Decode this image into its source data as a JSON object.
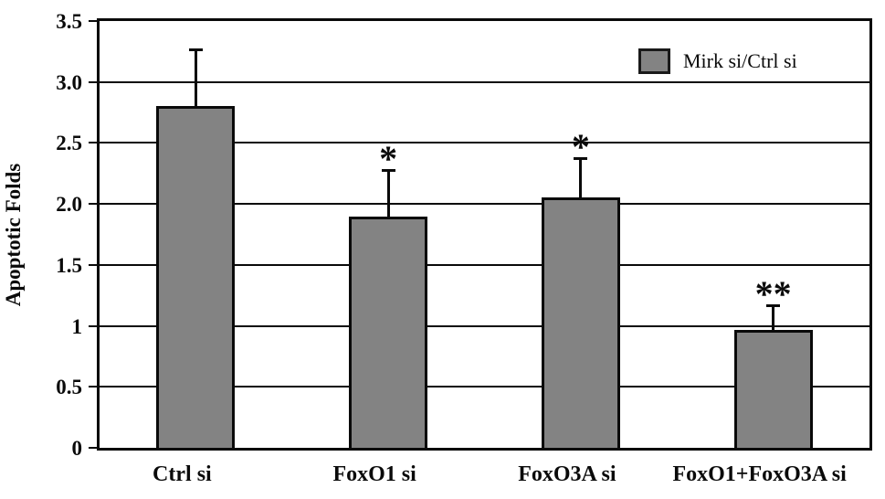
{
  "chart_data": {
    "type": "bar",
    "categories": [
      "Ctrl si",
      "FoxO1 si",
      "FoxO3A si",
      "FoxO1+FoxO3A si"
    ],
    "values": [
      2.8,
      1.9,
      2.05,
      0.97
    ],
    "errors_upper": [
      0.46,
      0.37,
      0.32,
      0.19
    ],
    "significance": [
      "",
      "*",
      "*",
      "**"
    ],
    "ylabel": "Apoptotic Folds",
    "xlabel": "",
    "yticks": [
      {
        "label": "3.5",
        "value": 3.5
      },
      {
        "label": "3.0",
        "value": 3.0
      },
      {
        "label": "2.5",
        "value": 2.5
      },
      {
        "label": "2.0",
        "value": 2.0
      },
      {
        "label": "1.5",
        "value": 1.5
      },
      {
        "label": "1",
        "value": 1.0
      },
      {
        "label": "0.5",
        "value": 0.5
      },
      {
        "label": "0",
        "value": 0.0
      }
    ],
    "ylim": [
      0,
      3.5
    ],
    "grid": true,
    "legend_position": "top-right",
    "legend": [
      {
        "label": "Mirk si/Ctrl si",
        "color": "#838383"
      }
    ],
    "bar_color": "#838383",
    "bar_border_color": "#0a0a0a",
    "axis_color": "#0a0a0a"
  }
}
